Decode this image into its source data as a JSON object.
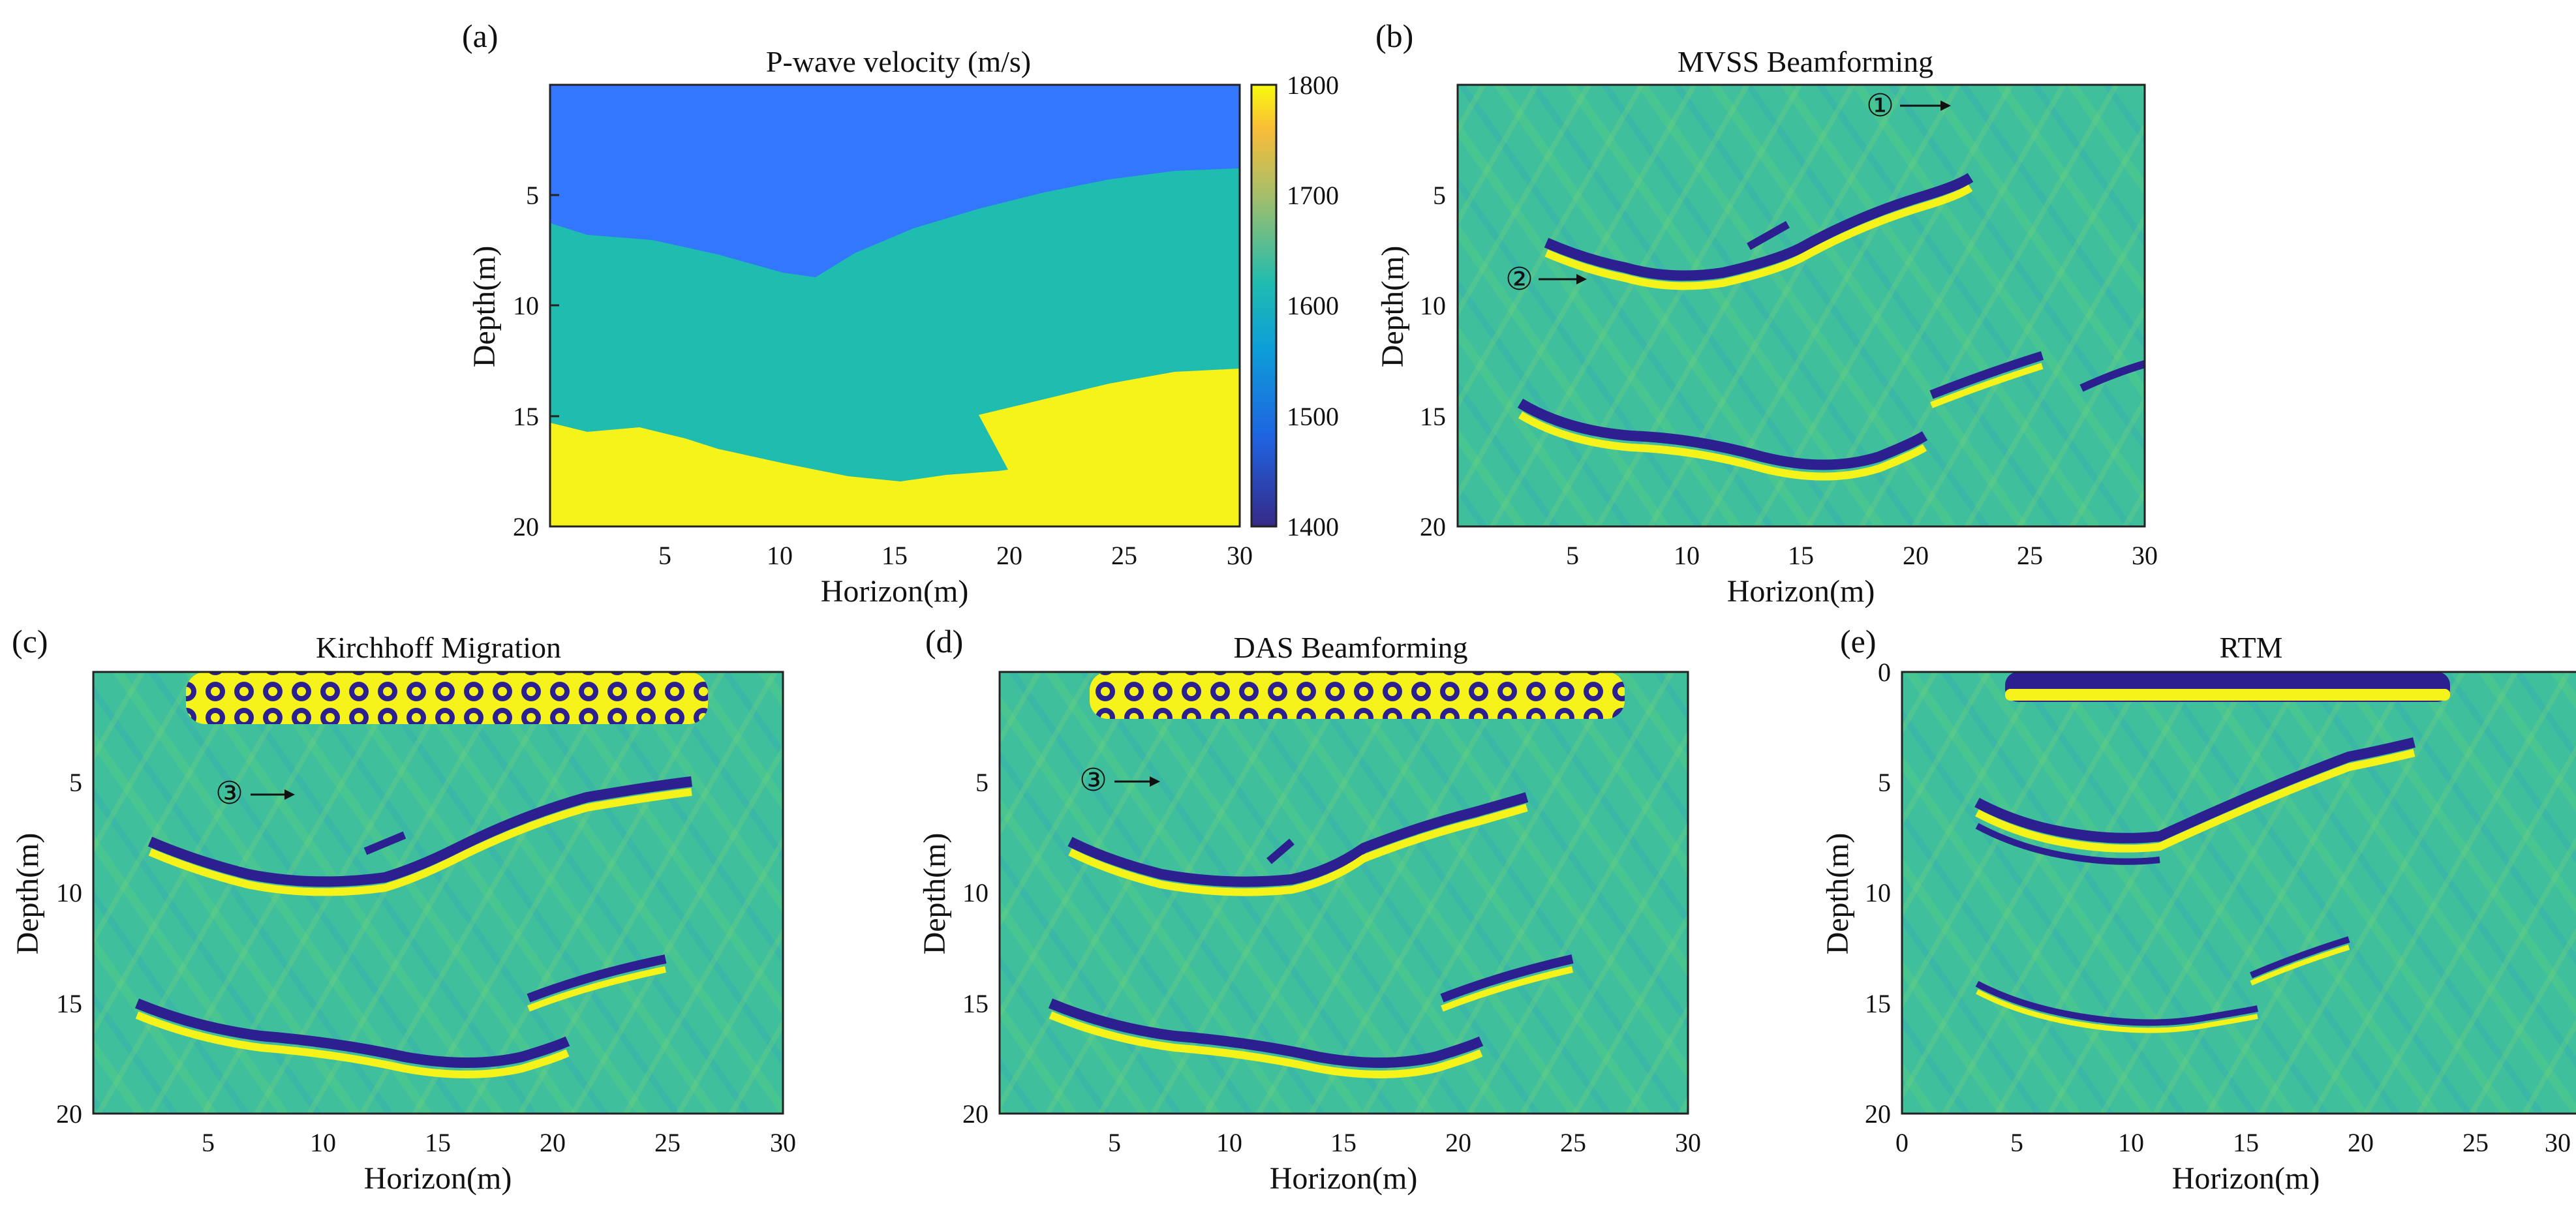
{
  "colors": {
    "background_blue": "#3377ff",
    "teal": "#1fbcb0",
    "yellow": "#f6f31a",
    "dark_purple": "#2c1f8f",
    "field_green": "#3fbf9c"
  },
  "panels": [
    {
      "id": "a",
      "letter": "(a)",
      "title": "P-wave velocity (m/s)",
      "xlabel": "Horizon(m)",
      "ylabel": "Depth(m)",
      "xticks": [
        "5",
        "10",
        "15",
        "20",
        "25",
        "30"
      ],
      "yticks": [
        "5",
        "10",
        "15",
        "20"
      ],
      "colorbar": {
        "min": 1400,
        "max": 1800,
        "ticks": [
          "1400",
          "1500",
          "1600",
          "1700",
          "1800"
        ]
      },
      "layers": [
        {
          "name": "upper layer",
          "velocity": 1500
        },
        {
          "name": "middle layer",
          "velocity": 1600
        },
        {
          "name": "lower layer",
          "velocity": 1800
        }
      ]
    },
    {
      "id": "b",
      "letter": "(b)",
      "title": "MVSS Beamforming",
      "xlabel": "Horizon(m)",
      "ylabel": "Depth(m)",
      "xticks": [
        "5",
        "10",
        "15",
        "20",
        "25",
        "30"
      ],
      "yticks": [
        "5",
        "10",
        "15",
        "20"
      ],
      "markers": [
        "①",
        "②"
      ]
    },
    {
      "id": "c",
      "letter": "(c)",
      "title": "Kirchhoff Migration",
      "xlabel": "Horizon(m)",
      "ylabel": "Depth(m)",
      "xticks": [
        "5",
        "10",
        "15",
        "20",
        "25",
        "30"
      ],
      "yticks": [
        "5",
        "10",
        "15",
        "20"
      ],
      "markers": [
        "③"
      ]
    },
    {
      "id": "d",
      "letter": "(d)",
      "title": "DAS Beamforming",
      "xlabel": "Horizon(m)",
      "ylabel": "Depth(m)",
      "xticks": [
        "5",
        "10",
        "15",
        "20",
        "25",
        "30"
      ],
      "yticks": [
        "5",
        "10",
        "15",
        "20"
      ],
      "markers": [
        "③"
      ]
    },
    {
      "id": "e",
      "letter": "(e)",
      "title": "RTM",
      "xlabel": "Horizon(m)",
      "ylabel": "Depth(m)",
      "xticks": [
        "0",
        "5",
        "10",
        "15",
        "20",
        "25",
        "30"
      ],
      "yticks": [
        "0",
        "5",
        "10",
        "15",
        "20"
      ]
    }
  ]
}
